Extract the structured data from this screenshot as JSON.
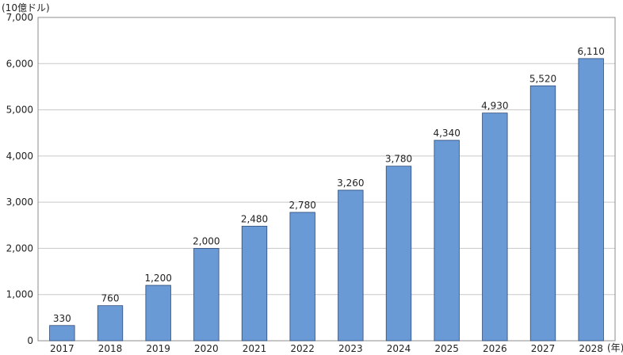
{
  "chart_data": {
    "type": "bar",
    "ylabel": "(10億ドル)",
    "xlabel": "(年)",
    "categories": [
      "2017",
      "2018",
      "2019",
      "2020",
      "2021",
      "2022",
      "2023",
      "2024",
      "2025",
      "2026",
      "2027",
      "2028"
    ],
    "values": [
      330,
      760,
      1200,
      2000,
      2480,
      2780,
      3260,
      3780,
      4340,
      4930,
      5520,
      6110
    ],
    "value_labels": [
      "330",
      "760",
      "1,200",
      "2,000",
      "2,480",
      "2,780",
      "3,260",
      "3,780",
      "4,340",
      "4,930",
      "5,520",
      "6,110"
    ],
    "ylim": [
      0,
      7000
    ],
    "yticks": [
      0,
      1000,
      2000,
      3000,
      4000,
      5000,
      6000,
      7000
    ],
    "ytick_labels": [
      "0",
      "1,000",
      "2,000",
      "3,000",
      "4,000",
      "5,000",
      "6,000",
      "7,000"
    ],
    "grid": true,
    "bar_color": "#6a9ad6",
    "bar_edge_color": "#2e4a78",
    "grid_color": "#c8c8c8",
    "frame_color": "#8c8c8c"
  }
}
